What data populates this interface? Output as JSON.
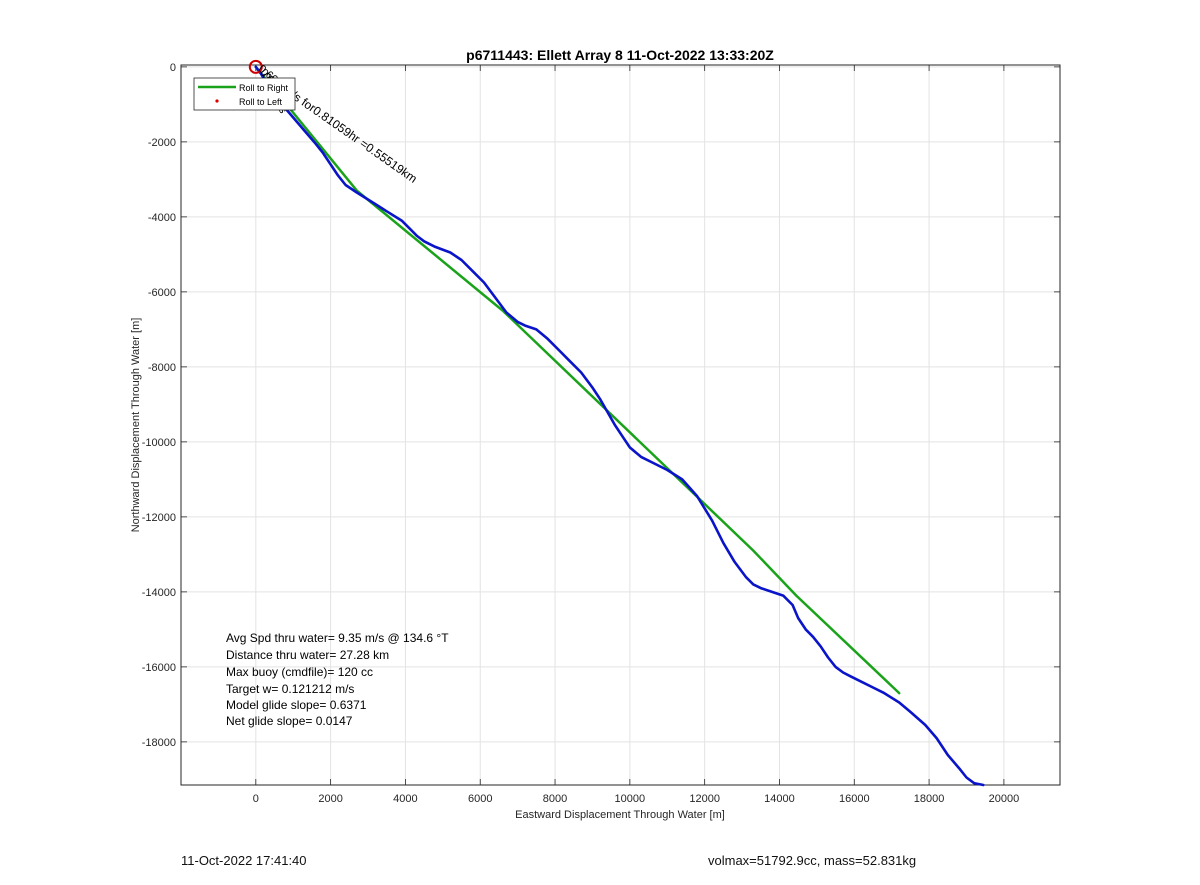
{
  "chart_data": {
    "type": "line",
    "title": "p6711443: Ellett Array 8 11-Oct-2022 13:33:20Z",
    "xlabel": "Eastward Displacement Through Water [m]",
    "ylabel": "Northward Displacement Through Water [m]",
    "xlim": [
      -2000,
      21500
    ],
    "ylim": [
      -19150,
      50
    ],
    "x_ticks": [
      0,
      2000,
      4000,
      6000,
      8000,
      10000,
      12000,
      14000,
      16000,
      18000,
      20000
    ],
    "y_ticks": [
      0,
      -2000,
      -4000,
      -6000,
      -8000,
      -10000,
      -12000,
      -14000,
      -16000,
      -18000
    ],
    "grid": true,
    "legend": {
      "placement": "top-left",
      "entries": [
        {
          "label": "Roll to Right",
          "style": "line",
          "color": "#1aa31a"
        },
        {
          "label": "Roll to Left",
          "style": "dot",
          "color": "#e00000"
        }
      ]
    },
    "series": [
      {
        "color": "#1aa31a",
        "x": [
          0,
          2700,
          6600,
          13300,
          14450,
          17200
        ],
        "y": [
          0,
          -3300,
          -6500,
          -12900,
          -14100,
          -16700
        ]
      },
      {
        "color": "#0a14c8",
        "x": [
          0,
          150,
          300,
          500,
          700,
          1000,
          1300,
          1600,
          1800,
          2000,
          2200,
          2400,
          2700,
          3100,
          3500,
          3900,
          4100,
          4300,
          4500,
          4800,
          5200,
          5500,
          5800,
          6100,
          6400,
          6700,
          7000,
          7200,
          7500,
          7800,
          8100,
          8400,
          8700,
          9000,
          9200,
          9400,
          9600,
          9800,
          10000,
          10300,
          10600,
          11000,
          11400,
          11800,
          12200,
          12500,
          12800,
          13100,
          13300,
          13500,
          13800,
          14100,
          14350,
          14500,
          14700,
          14900,
          15100,
          15300,
          15500,
          15700,
          15900,
          16200,
          16500,
          16800,
          17200,
          17500,
          17900,
          18200,
          18500,
          18800,
          19000,
          19200,
          19450
        ],
        "y": [
          0,
          -200,
          -450,
          -700,
          -1000,
          -1350,
          -1700,
          -2050,
          -2300,
          -2600,
          -2900,
          -3150,
          -3350,
          -3600,
          -3850,
          -4100,
          -4300,
          -4500,
          -4650,
          -4800,
          -4950,
          -5150,
          -5450,
          -5750,
          -6150,
          -6550,
          -6800,
          -6900,
          -7000,
          -7250,
          -7550,
          -7850,
          -8150,
          -8550,
          -8850,
          -9200,
          -9550,
          -9850,
          -10150,
          -10400,
          -10550,
          -10750,
          -11000,
          -11450,
          -12100,
          -12700,
          -13200,
          -13600,
          -13800,
          -13900,
          -14000,
          -14100,
          -14350,
          -14700,
          -15000,
          -15200,
          -15450,
          -15750,
          -16000,
          -16150,
          -16250,
          -16400,
          -16550,
          -16700,
          -16950,
          -17200,
          -17550,
          -17900,
          -18350,
          -18700,
          -18950,
          -19100,
          -19150
        ]
      }
    ],
    "markers": [
      {
        "shape": "circle",
        "color": "#cc0000",
        "x": 0,
        "y": 0
      }
    ],
    "segment_label": {
      "text": "m/s for0.81059hr =0.55519km",
      "x": 700,
      "y": -650,
      "angle": 35
    },
    "start_label_cluster": {
      "texts": [
        "0.60m/s",
        "0.85m/s",
        "0.73m/s",
        "0.63m/s"
      ],
      "x": 0,
      "y": 0
    },
    "annotation_lines": [
      "Avg Spd thru water=  9.35 m/s @ 134.6 °T",
      "Distance thru water= 27.28 km",
      "Max buoy (cmdfile)= 120 cc",
      "Target w= 0.121212 m/s",
      "Model glide slope= 0.6371",
      "Net glide slope= 0.0147"
    ]
  },
  "footer": {
    "left": "11-Oct-2022 17:41:40",
    "right": "volmax=51792.9cc, mass=52.831kg"
  }
}
